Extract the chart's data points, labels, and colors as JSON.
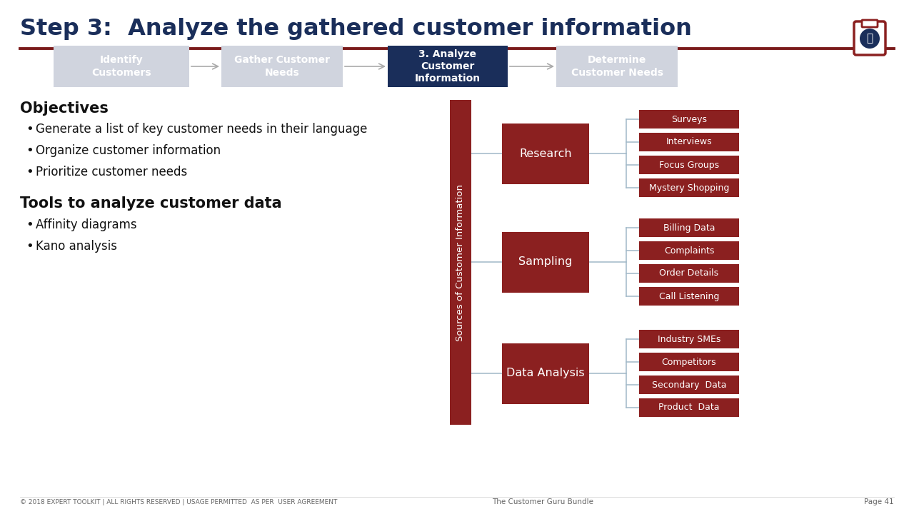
{
  "title": "Step 3:  Analyze the gathered customer information",
  "bg_color": "#ffffff",
  "title_color": "#1a2e5a",
  "title_line_color": "#7a1a1a",
  "nav_boxes": [
    {
      "label": "Identify\nCustomers",
      "color": "#d0d4de",
      "text_color": "#ffffff",
      "active": false
    },
    {
      "label": "Gather Customer\nNeeds",
      "color": "#d0d4de",
      "text_color": "#ffffff",
      "active": false
    },
    {
      "label": "3. Analyze\nCustomer\nInformation",
      "color": "#1a2e5a",
      "text_color": "#ffffff",
      "active": true
    },
    {
      "label": "Determine\nCustomer Needs",
      "color": "#d0d4de",
      "text_color": "#ffffff",
      "active": false
    }
  ],
  "objectives_title": "Objectives",
  "objectives": [
    "Generate a list of key customer needs in their language",
    "Organize customer information",
    "Prioritize customer needs"
  ],
  "tools_title": "Tools to analyze customer data",
  "tools": [
    "Affinity diagrams",
    "Kano analysis"
  ],
  "node_color": "#8b2020",
  "connector_color": "#a0b8c8",
  "main_label": "Sources of Customer Information",
  "nodes": [
    {
      "label": "Research",
      "children": [
        "Surveys",
        "Interviews",
        "Focus Groups",
        "Mystery Shopping"
      ]
    },
    {
      "label": "Sampling",
      "children": [
        "Billing Data",
        "Complaints",
        "Order Details",
        "Call Listening"
      ]
    },
    {
      "label": "Data Analysis",
      "children": [
        "Industry SMEs",
        "Competitors",
        "Secondary  Data",
        "Product  Data"
      ]
    }
  ],
  "footer_left": "© 2018 EXPERT TOOLKIT | ALL RIGHTS RESERVED | USAGE PERMITTED  AS PER  USER AGREEMENT",
  "footer_center": "The Customer Guru Bundle",
  "footer_right": "Page 41",
  "footer_color": "#666666"
}
